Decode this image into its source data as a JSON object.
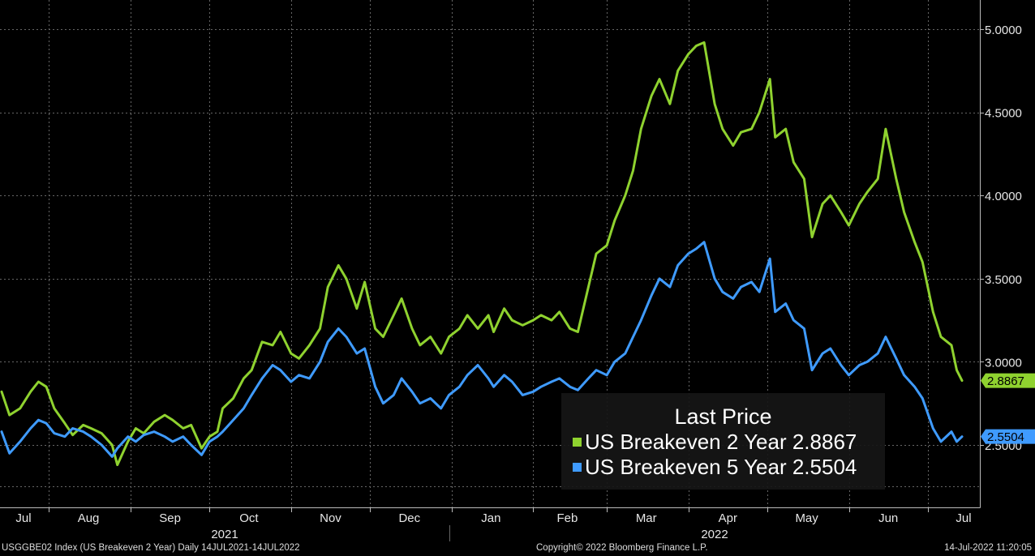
{
  "chart_data": {
    "type": "line",
    "yaxis": {
      "side": "right",
      "ylim": [
        2.2,
        5.1
      ],
      "ticks": [
        2.5,
        3.0,
        3.5,
        4.0,
        4.5,
        5.0
      ],
      "tick_labels": [
        "2.5000",
        "3.0000",
        "3.5000",
        "4.0000",
        "4.5000",
        "5.0000"
      ]
    },
    "xaxis": {
      "month_labels": [
        "Jul",
        "Aug",
        "Sep",
        "Oct",
        "Nov",
        "Dec",
        "Jan",
        "Feb",
        "Mar",
        "Apr",
        "May",
        "Jun",
        "Jul"
      ],
      "year_labels": [
        "2021",
        "2022"
      ]
    },
    "grid": true,
    "legend": {
      "title": "Last Price",
      "placement": "bottom-right",
      "entries": [
        {
          "label": "US Breakeven 2 Year",
          "value": "2.8867",
          "color": "#8fd22f"
        },
        {
          "label": "US Breakeven 5 Year",
          "value": "2.5504",
          "color": "#3f9bff"
        }
      ]
    },
    "series": [
      {
        "name": "US Breakeven 2 Year",
        "color": "#8fd22f",
        "last_label": "2.8867",
        "points": [
          [
            "2021-07-14",
            2.82
          ],
          [
            "2021-07-17",
            2.68
          ],
          [
            "2021-07-21",
            2.72
          ],
          [
            "2021-07-25",
            2.82
          ],
          [
            "2021-07-28",
            2.88
          ],
          [
            "2021-07-31",
            2.85
          ],
          [
            "2021-08-03",
            2.72
          ],
          [
            "2021-08-07",
            2.63
          ],
          [
            "2021-08-10",
            2.56
          ],
          [
            "2021-08-14",
            2.62
          ],
          [
            "2021-08-17",
            2.6
          ],
          [
            "2021-08-21",
            2.57
          ],
          [
            "2021-08-25",
            2.5
          ],
          [
            "2021-08-27",
            2.38
          ],
          [
            "2021-08-31",
            2.52
          ],
          [
            "2021-09-03",
            2.6
          ],
          [
            "2021-09-06",
            2.57
          ],
          [
            "2021-09-10",
            2.64
          ],
          [
            "2021-09-14",
            2.68
          ],
          [
            "2021-09-17",
            2.65
          ],
          [
            "2021-09-21",
            2.6
          ],
          [
            "2021-09-24",
            2.62
          ],
          [
            "2021-09-28",
            2.48
          ],
          [
            "2021-10-01",
            2.55
          ],
          [
            "2021-10-04",
            2.58
          ],
          [
            "2021-10-06",
            2.72
          ],
          [
            "2021-10-10",
            2.78
          ],
          [
            "2021-10-14",
            2.9
          ],
          [
            "2021-10-17",
            2.95
          ],
          [
            "2021-10-21",
            3.12
          ],
          [
            "2021-10-25",
            3.1
          ],
          [
            "2021-10-28",
            3.18
          ],
          [
            "2021-11-01",
            3.05
          ],
          [
            "2021-11-04",
            3.02
          ],
          [
            "2021-11-08",
            3.1
          ],
          [
            "2021-11-12",
            3.2
          ],
          [
            "2021-11-15",
            3.45
          ],
          [
            "2021-11-19",
            3.58
          ],
          [
            "2021-11-22",
            3.5
          ],
          [
            "2021-11-26",
            3.32
          ],
          [
            "2021-11-29",
            3.48
          ],
          [
            "2021-12-03",
            3.2
          ],
          [
            "2021-12-06",
            3.15
          ],
          [
            "2021-12-10",
            3.28
          ],
          [
            "2021-12-13",
            3.38
          ],
          [
            "2021-12-17",
            3.2
          ],
          [
            "2021-12-20",
            3.1
          ],
          [
            "2021-12-24",
            3.15
          ],
          [
            "2021-12-28",
            3.05
          ],
          [
            "2021-12-31",
            3.15
          ],
          [
            "2022-01-04",
            3.2
          ],
          [
            "2022-01-07",
            3.28
          ],
          [
            "2022-01-11",
            3.2
          ],
          [
            "2022-01-15",
            3.28
          ],
          [
            "2022-01-17",
            3.18
          ],
          [
            "2022-01-21",
            3.32
          ],
          [
            "2022-01-24",
            3.25
          ],
          [
            "2022-01-28",
            3.22
          ],
          [
            "2022-02-01",
            3.25
          ],
          [
            "2022-02-04",
            3.28
          ],
          [
            "2022-02-08",
            3.25
          ],
          [
            "2022-02-11",
            3.3
          ],
          [
            "2022-02-15",
            3.2
          ],
          [
            "2022-02-18",
            3.18
          ],
          [
            "2022-02-22",
            3.45
          ],
          [
            "2022-02-25",
            3.65
          ],
          [
            "2022-03-01",
            3.7
          ],
          [
            "2022-03-04",
            3.85
          ],
          [
            "2022-03-08",
            4.0
          ],
          [
            "2022-03-11",
            4.15
          ],
          [
            "2022-03-14",
            4.4
          ],
          [
            "2022-03-18",
            4.6
          ],
          [
            "2022-03-21",
            4.7
          ],
          [
            "2022-03-25",
            4.55
          ],
          [
            "2022-03-28",
            4.75
          ],
          [
            "2022-04-01",
            4.85
          ],
          [
            "2022-04-04",
            4.9
          ],
          [
            "2022-04-07",
            4.92
          ],
          [
            "2022-04-11",
            4.55
          ],
          [
            "2022-04-14",
            4.4
          ],
          [
            "2022-04-18",
            4.3
          ],
          [
            "2022-04-21",
            4.38
          ],
          [
            "2022-04-25",
            4.4
          ],
          [
            "2022-04-28",
            4.5
          ],
          [
            "2022-05-02",
            4.7
          ],
          [
            "2022-05-04",
            4.35
          ],
          [
            "2022-05-08",
            4.4
          ],
          [
            "2022-05-11",
            4.2
          ],
          [
            "2022-05-15",
            4.1
          ],
          [
            "2022-05-18",
            3.75
          ],
          [
            "2022-05-22",
            3.95
          ],
          [
            "2022-05-25",
            4.0
          ],
          [
            "2022-05-29",
            3.9
          ],
          [
            "2022-06-01",
            3.82
          ],
          [
            "2022-06-05",
            3.95
          ],
          [
            "2022-06-08",
            4.02
          ],
          [
            "2022-06-12",
            4.1
          ],
          [
            "2022-06-15",
            4.4
          ],
          [
            "2022-06-19",
            4.1
          ],
          [
            "2022-06-22",
            3.9
          ],
          [
            "2022-06-26",
            3.72
          ],
          [
            "2022-06-29",
            3.6
          ],
          [
            "2022-07-03",
            3.3
          ],
          [
            "2022-07-06",
            3.15
          ],
          [
            "2022-07-10",
            3.1
          ],
          [
            "2022-07-12",
            2.95
          ],
          [
            "2022-07-14",
            2.8867
          ]
        ]
      },
      {
        "name": "US Breakeven 5 Year",
        "color": "#3f9bff",
        "last_label": "2.5504",
        "points": [
          [
            "2021-07-14",
            2.58
          ],
          [
            "2021-07-17",
            2.45
          ],
          [
            "2021-07-21",
            2.52
          ],
          [
            "2021-07-25",
            2.6
          ],
          [
            "2021-07-28",
            2.65
          ],
          [
            "2021-07-31",
            2.63
          ],
          [
            "2021-08-03",
            2.57
          ],
          [
            "2021-08-07",
            2.55
          ],
          [
            "2021-08-10",
            2.6
          ],
          [
            "2021-08-14",
            2.58
          ],
          [
            "2021-08-17",
            2.55
          ],
          [
            "2021-08-21",
            2.5
          ],
          [
            "2021-08-25",
            2.43
          ],
          [
            "2021-08-27",
            2.48
          ],
          [
            "2021-08-31",
            2.55
          ],
          [
            "2021-09-03",
            2.52
          ],
          [
            "2021-09-06",
            2.56
          ],
          [
            "2021-09-10",
            2.58
          ],
          [
            "2021-09-14",
            2.55
          ],
          [
            "2021-09-17",
            2.52
          ],
          [
            "2021-09-21",
            2.55
          ],
          [
            "2021-09-24",
            2.5
          ],
          [
            "2021-09-28",
            2.44
          ],
          [
            "2021-10-01",
            2.52
          ],
          [
            "2021-10-04",
            2.55
          ],
          [
            "2021-10-06",
            2.58
          ],
          [
            "2021-10-10",
            2.65
          ],
          [
            "2021-10-14",
            2.72
          ],
          [
            "2021-10-17",
            2.8
          ],
          [
            "2021-10-21",
            2.9
          ],
          [
            "2021-10-25",
            2.98
          ],
          [
            "2021-10-28",
            2.95
          ],
          [
            "2021-11-01",
            2.88
          ],
          [
            "2021-11-04",
            2.92
          ],
          [
            "2021-11-08",
            2.9
          ],
          [
            "2021-11-12",
            3.0
          ],
          [
            "2021-11-15",
            3.12
          ],
          [
            "2021-11-19",
            3.2
          ],
          [
            "2021-11-22",
            3.15
          ],
          [
            "2021-11-26",
            3.05
          ],
          [
            "2021-11-29",
            3.08
          ],
          [
            "2021-12-03",
            2.85
          ],
          [
            "2021-12-06",
            2.75
          ],
          [
            "2021-12-10",
            2.8
          ],
          [
            "2021-12-13",
            2.9
          ],
          [
            "2021-12-17",
            2.82
          ],
          [
            "2021-12-20",
            2.75
          ],
          [
            "2021-12-24",
            2.78
          ],
          [
            "2021-12-28",
            2.72
          ],
          [
            "2021-12-31",
            2.8
          ],
          [
            "2022-01-04",
            2.85
          ],
          [
            "2022-01-07",
            2.92
          ],
          [
            "2022-01-11",
            2.98
          ],
          [
            "2022-01-15",
            2.9
          ],
          [
            "2022-01-17",
            2.85
          ],
          [
            "2022-01-21",
            2.92
          ],
          [
            "2022-01-24",
            2.88
          ],
          [
            "2022-01-28",
            2.8
          ],
          [
            "2022-02-01",
            2.82
          ],
          [
            "2022-02-04",
            2.85
          ],
          [
            "2022-02-08",
            2.88
          ],
          [
            "2022-02-11",
            2.9
          ],
          [
            "2022-02-15",
            2.85
          ],
          [
            "2022-02-18",
            2.83
          ],
          [
            "2022-02-22",
            2.9
          ],
          [
            "2022-02-25",
            2.95
          ],
          [
            "2022-03-01",
            2.92
          ],
          [
            "2022-03-04",
            3.0
          ],
          [
            "2022-03-08",
            3.05
          ],
          [
            "2022-03-11",
            3.15
          ],
          [
            "2022-03-14",
            3.25
          ],
          [
            "2022-03-18",
            3.4
          ],
          [
            "2022-03-21",
            3.5
          ],
          [
            "2022-03-25",
            3.45
          ],
          [
            "2022-03-28",
            3.58
          ],
          [
            "2022-04-01",
            3.65
          ],
          [
            "2022-04-04",
            3.68
          ],
          [
            "2022-04-07",
            3.72
          ],
          [
            "2022-04-11",
            3.5
          ],
          [
            "2022-04-14",
            3.42
          ],
          [
            "2022-04-18",
            3.38
          ],
          [
            "2022-04-21",
            3.45
          ],
          [
            "2022-04-25",
            3.48
          ],
          [
            "2022-04-28",
            3.42
          ],
          [
            "2022-05-02",
            3.62
          ],
          [
            "2022-05-04",
            3.3
          ],
          [
            "2022-05-08",
            3.35
          ],
          [
            "2022-05-11",
            3.25
          ],
          [
            "2022-05-15",
            3.2
          ],
          [
            "2022-05-18",
            2.95
          ],
          [
            "2022-05-22",
            3.05
          ],
          [
            "2022-05-25",
            3.08
          ],
          [
            "2022-05-29",
            2.98
          ],
          [
            "2022-06-01",
            2.92
          ],
          [
            "2022-06-05",
            2.98
          ],
          [
            "2022-06-08",
            3.0
          ],
          [
            "2022-06-12",
            3.05
          ],
          [
            "2022-06-15",
            3.15
          ],
          [
            "2022-06-19",
            3.02
          ],
          [
            "2022-06-22",
            2.92
          ],
          [
            "2022-06-26",
            2.85
          ],
          [
            "2022-06-29",
            2.78
          ],
          [
            "2022-07-03",
            2.6
          ],
          [
            "2022-07-06",
            2.52
          ],
          [
            "2022-07-10",
            2.58
          ],
          [
            "2022-07-12",
            2.52
          ],
          [
            "2022-07-14",
            2.5504
          ]
        ]
      }
    ]
  },
  "footer": {
    "left": "USGGBE02 Index (US Breakeven 2 Year)  Daily 14JUL2021-14JUL2022",
    "center": "Copyright© 2022 Bloomberg Finance L.P.",
    "right": "14-Jul-2022 11:20:05"
  }
}
